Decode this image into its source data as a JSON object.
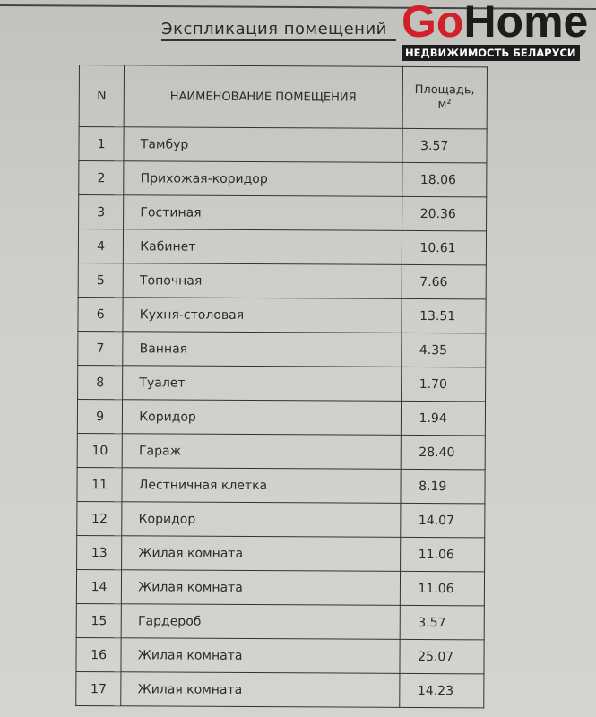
{
  "title": "Экспликация помещений",
  "table": {
    "headers": {
      "n": "N",
      "name": "НАИМЕНОВАНИЕ ПОМЕЩЕНИЯ",
      "area": "Площадь,",
      "area_unit": "м²"
    },
    "rows": [
      {
        "n": "1",
        "name": "Тамбур",
        "area": "3.57"
      },
      {
        "n": "2",
        "name": "Прихожая-коридор",
        "area": "18.06"
      },
      {
        "n": "3",
        "name": "Гостиная",
        "area": "20.36"
      },
      {
        "n": "4",
        "name": "Кабинет",
        "area": "10.61"
      },
      {
        "n": "5",
        "name": "Топочная",
        "area": "7.66"
      },
      {
        "n": "6",
        "name": "Кухня-столовая",
        "area": "13.51"
      },
      {
        "n": "7",
        "name": "Ванная",
        "area": "4.35"
      },
      {
        "n": "8",
        "name": "Туалет",
        "area": "1.70"
      },
      {
        "n": "9",
        "name": "Коридор",
        "area": "1.94"
      },
      {
        "n": "10",
        "name": "Гараж",
        "area": "28.40"
      },
      {
        "n": "11",
        "name": "Лестничная клетка",
        "area": "8.19"
      },
      {
        "n": "12",
        "name": "Коридор",
        "area": "14.07"
      },
      {
        "n": "13",
        "name": "Жилая комната",
        "area": "11.06"
      },
      {
        "n": "14",
        "name": "Жилая комната",
        "area": "11.06"
      },
      {
        "n": "15",
        "name": "Гардероб",
        "area": "3.57"
      },
      {
        "n": "16",
        "name": "Жилая комната",
        "area": "25.07"
      },
      {
        "n": "17",
        "name": "Жилая комната",
        "area": "14.23"
      }
    ]
  },
  "watermark": {
    "go": "Go",
    "home": "Home",
    "tagline": "НЕДВИЖИМОСТЬ БЕЛАРУСИ",
    "colors": {
      "go": "#d0202a",
      "home": "#1c1c1c"
    }
  }
}
